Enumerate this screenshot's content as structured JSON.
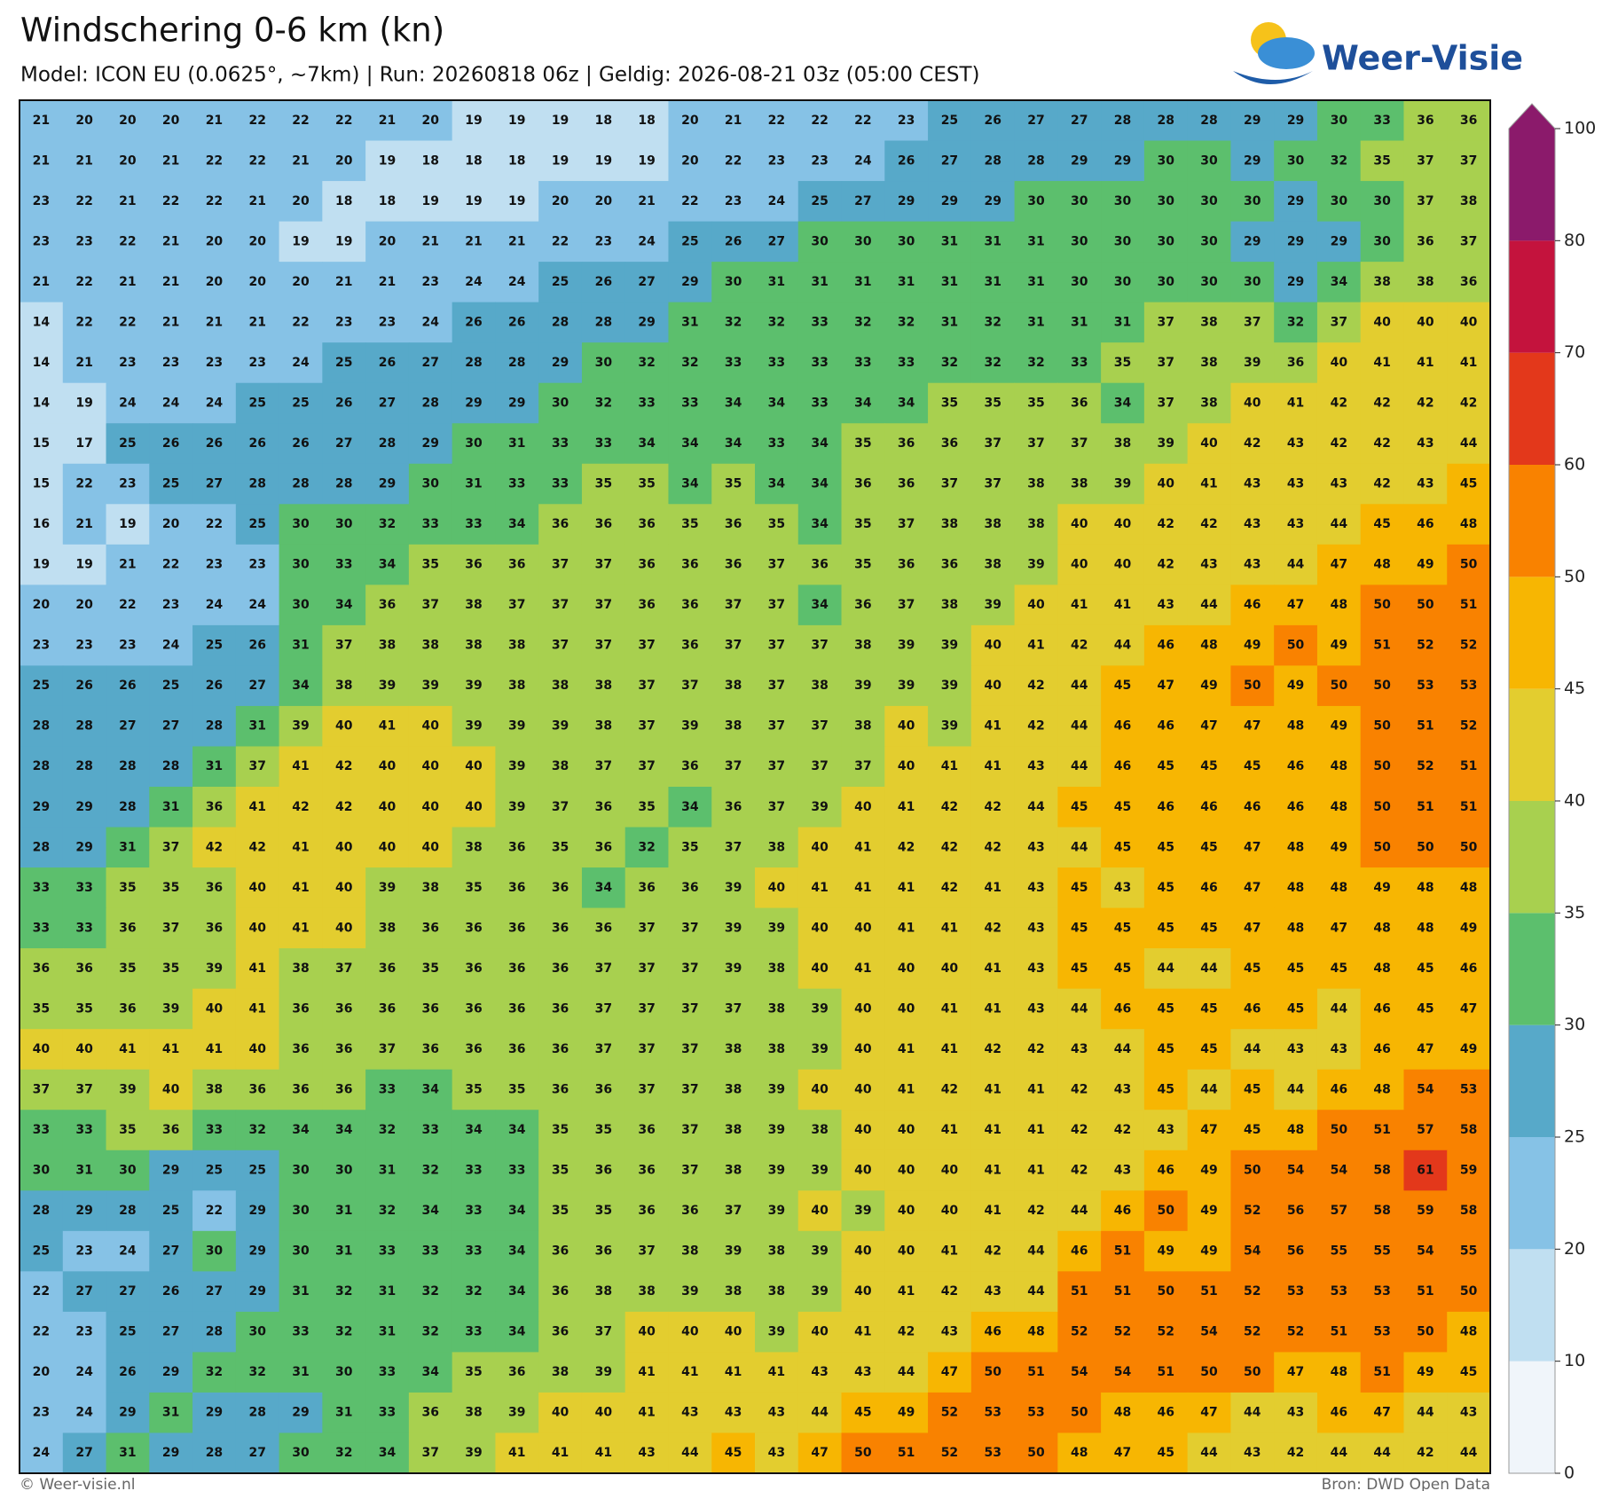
{
  "title": "Windschering 0-6 km (kn)",
  "subtitle": "Model: ICON EU (0.0625°, ~7km)  |  Run: 20260818 06z  |  Geldig: 2026-08-21 03z (05:00 CEST)",
  "logo": "Weer-Visie",
  "footer_left": "© Weer-visie.nl",
  "footer_right": "Bron: DWD Open Data",
  "colorbar": {
    "ticks": [
      0,
      10,
      20,
      25,
      30,
      35,
      40,
      45,
      50,
      60,
      70,
      80,
      100
    ],
    "colors": [
      "#f0f5fa",
      "#c0dff1",
      "#86c2e6",
      "#57a9c9",
      "#5cbf6d",
      "#a8d04f",
      "#e3cd2f",
      "#f7b602",
      "#f98200",
      "#e3381b",
      "#c4133d",
      "#8b1a6b"
    ]
  },
  "grid": {
    "values": [
      [
        21,
        20,
        20,
        20,
        21,
        22,
        22,
        22,
        21,
        20,
        19,
        19,
        19,
        18,
        18,
        20,
        21,
        22,
        22,
        22,
        23,
        25,
        26,
        27,
        27,
        28,
        28,
        28,
        29,
        29,
        30,
        33,
        36,
        36
      ],
      [
        21,
        21,
        20,
        21,
        22,
        22,
        21,
        20,
        19,
        18,
        18,
        18,
        19,
        19,
        19,
        20,
        22,
        23,
        23,
        24,
        26,
        27,
        28,
        28,
        29,
        29,
        30,
        30,
        29,
        30,
        32,
        35,
        37,
        37
      ],
      [
        23,
        22,
        21,
        22,
        22,
        21,
        20,
        18,
        18,
        19,
        19,
        19,
        20,
        20,
        21,
        22,
        23,
        24,
        25,
        27,
        29,
        29,
        29,
        30,
        30,
        30,
        30,
        30,
        30,
        29,
        30,
        30,
        37,
        38
      ],
      [
        23,
        23,
        22,
        21,
        20,
        20,
        19,
        19,
        20,
        21,
        21,
        21,
        22,
        23,
        24,
        25,
        26,
        27,
        30,
        30,
        30,
        31,
        31,
        31,
        30,
        30,
        30,
        30,
        29,
        29,
        29,
        30,
        36,
        37
      ],
      [
        21,
        22,
        21,
        21,
        20,
        20,
        20,
        21,
        21,
        23,
        24,
        24,
        25,
        26,
        27,
        29,
        30,
        31,
        31,
        31,
        31,
        31,
        31,
        31,
        30,
        30,
        30,
        30,
        30,
        29,
        34,
        38,
        38,
        36
      ],
      [
        14,
        22,
        22,
        21,
        21,
        21,
        22,
        23,
        23,
        24,
        26,
        26,
        28,
        28,
        29,
        31,
        32,
        32,
        33,
        32,
        32,
        31,
        32,
        31,
        31,
        31,
        37,
        38,
        37,
        32,
        37,
        40,
        40,
        40
      ],
      [
        14,
        21,
        23,
        23,
        23,
        23,
        24,
        25,
        26,
        27,
        28,
        28,
        29,
        30,
        32,
        32,
        33,
        33,
        33,
        33,
        33,
        32,
        32,
        32,
        33,
        35,
        37,
        38,
        39,
        36,
        40,
        41,
        41,
        41
      ],
      [
        14,
        19,
        24,
        24,
        24,
        25,
        25,
        26,
        27,
        28,
        29,
        29,
        30,
        32,
        33,
        33,
        34,
        34,
        33,
        34,
        34,
        35,
        35,
        35,
        36,
        34,
        37,
        38,
        40,
        41,
        42,
        42,
        42,
        42
      ],
      [
        15,
        17,
        25,
        26,
        26,
        26,
        26,
        27,
        28,
        29,
        30,
        31,
        33,
        33,
        34,
        34,
        34,
        33,
        34,
        35,
        36,
        36,
        37,
        37,
        37,
        38,
        39,
        40,
        42,
        43,
        42,
        42,
        43,
        44
      ],
      [
        15,
        22,
        23,
        25,
        27,
        28,
        28,
        28,
        29,
        30,
        31,
        33,
        33,
        35,
        35,
        34,
        35,
        34,
        34,
        36,
        36,
        37,
        37,
        38,
        38,
        39,
        40,
        41,
        43,
        43,
        43,
        42,
        43,
        45
      ],
      [
        16,
        21,
        19,
        20,
        22,
        25,
        30,
        30,
        32,
        33,
        33,
        34,
        36,
        36,
        36,
        35,
        36,
        35,
        34,
        35,
        37,
        38,
        38,
        38,
        40,
        40,
        42,
        42,
        43,
        43,
        44,
        45,
        46,
        48
      ],
      [
        19,
        19,
        21,
        22,
        23,
        23,
        30,
        33,
        34,
        35,
        36,
        36,
        37,
        37,
        36,
        36,
        36,
        37,
        36,
        35,
        36,
        36,
        38,
        39,
        40,
        40,
        42,
        43,
        43,
        44,
        47,
        48,
        49,
        50
      ],
      [
        20,
        20,
        22,
        23,
        24,
        24,
        30,
        34,
        36,
        37,
        38,
        37,
        37,
        37,
        36,
        36,
        37,
        37,
        34,
        36,
        37,
        38,
        39,
        40,
        41,
        41,
        43,
        44,
        46,
        47,
        48,
        50,
        50,
        51
      ],
      [
        23,
        23,
        23,
        24,
        25,
        26,
        31,
        37,
        38,
        38,
        38,
        38,
        37,
        37,
        37,
        36,
        37,
        37,
        37,
        38,
        39,
        39,
        40,
        41,
        42,
        44,
        46,
        48,
        49,
        50,
        49,
        51,
        52,
        52
      ],
      [
        25,
        26,
        26,
        25,
        26,
        27,
        34,
        38,
        39,
        39,
        39,
        38,
        38,
        38,
        37,
        37,
        38,
        37,
        38,
        39,
        39,
        39,
        40,
        42,
        44,
        45,
        47,
        49,
        50,
        49,
        50,
        50,
        53,
        53
      ],
      [
        28,
        28,
        27,
        27,
        28,
        31,
        39,
        40,
        41,
        40,
        39,
        39,
        39,
        38,
        37,
        39,
        38,
        37,
        37,
        38,
        40,
        39,
        41,
        42,
        44,
        46,
        46,
        47,
        47,
        48,
        49,
        50,
        51,
        52
      ],
      [
        28,
        28,
        28,
        28,
        31,
        37,
        41,
        42,
        40,
        40,
        40,
        39,
        38,
        37,
        37,
        36,
        37,
        37,
        37,
        37,
        40,
        41,
        41,
        43,
        44,
        46,
        45,
        45,
        45,
        46,
        48,
        50,
        52,
        51
      ],
      [
        29,
        29,
        28,
        31,
        36,
        41,
        42,
        42,
        40,
        40,
        40,
        39,
        37,
        36,
        35,
        34,
        36,
        37,
        39,
        40,
        41,
        42,
        42,
        44,
        45,
        45,
        46,
        46,
        46,
        46,
        48,
        50,
        51,
        51
      ],
      [
        28,
        29,
        31,
        37,
        42,
        42,
        41,
        40,
        40,
        40,
        38,
        36,
        35,
        36,
        32,
        35,
        37,
        38,
        40,
        41,
        42,
        42,
        42,
        43,
        44,
        45,
        45,
        45,
        47,
        48,
        49,
        50,
        50,
        50
      ],
      [
        33,
        33,
        35,
        35,
        36,
        40,
        41,
        40,
        39,
        38,
        35,
        36,
        36,
        34,
        36,
        36,
        39,
        40,
        41,
        41,
        41,
        42,
        41,
        43,
        45,
        43,
        45,
        46,
        47,
        48,
        48,
        49,
        48,
        48
      ],
      [
        33,
        33,
        36,
        37,
        36,
        40,
        41,
        40,
        38,
        36,
        36,
        36,
        36,
        36,
        37,
        37,
        39,
        39,
        40,
        40,
        41,
        41,
        42,
        43,
        45,
        45,
        45,
        45,
        47,
        48,
        47,
        48,
        48,
        49
      ],
      [
        36,
        36,
        35,
        35,
        39,
        41,
        38,
        37,
        36,
        35,
        36,
        36,
        36,
        37,
        37,
        37,
        39,
        38,
        40,
        41,
        40,
        40,
        41,
        43,
        45,
        45,
        44,
        44,
        45,
        45,
        45,
        48,
        45,
        46
      ],
      [
        35,
        35,
        36,
        39,
        40,
        41,
        36,
        36,
        36,
        36,
        36,
        36,
        36,
        37,
        37,
        37,
        37,
        38,
        39,
        40,
        40,
        41,
        41,
        43,
        44,
        46,
        45,
        45,
        46,
        45,
        44,
        46,
        45,
        47
      ],
      [
        40,
        40,
        41,
        41,
        41,
        40,
        36,
        36,
        37,
        36,
        36,
        36,
        36,
        37,
        37,
        37,
        38,
        38,
        39,
        40,
        41,
        41,
        42,
        42,
        43,
        44,
        45,
        45,
        44,
        43,
        43,
        46,
        47,
        49
      ],
      [
        37,
        37,
        39,
        40,
        38,
        36,
        36,
        36,
        33,
        34,
        35,
        35,
        36,
        36,
        37,
        37,
        38,
        39,
        40,
        40,
        41,
        42,
        41,
        41,
        42,
        43,
        45,
        44,
        45,
        44,
        46,
        48,
        54,
        53
      ],
      [
        33,
        33,
        35,
        36,
        33,
        32,
        34,
        34,
        32,
        33,
        34,
        34,
        35,
        35,
        36,
        37,
        38,
        39,
        38,
        40,
        40,
        41,
        41,
        41,
        42,
        42,
        43,
        47,
        45,
        48,
        50,
        51,
        57,
        58
      ],
      [
        30,
        31,
        30,
        29,
        25,
        25,
        30,
        30,
        31,
        32,
        33,
        33,
        35,
        36,
        36,
        37,
        38,
        39,
        39,
        40,
        40,
        40,
        41,
        41,
        42,
        43,
        46,
        49,
        50,
        54,
        54,
        58,
        61,
        59
      ],
      [
        28,
        29,
        28,
        25,
        22,
        29,
        30,
        31,
        32,
        34,
        33,
        34,
        35,
        35,
        36,
        36,
        37,
        39,
        40,
        39,
        40,
        40,
        41,
        42,
        44,
        46,
        50,
        49,
        52,
        56,
        57,
        58,
        59,
        58
      ],
      [
        25,
        23,
        24,
        27,
        30,
        29,
        30,
        31,
        33,
        33,
        33,
        34,
        36,
        36,
        37,
        38,
        39,
        38,
        39,
        40,
        40,
        41,
        42,
        44,
        46,
        51,
        49,
        49,
        54,
        56,
        55,
        55,
        54,
        55
      ],
      [
        22,
        27,
        27,
        26,
        27,
        29,
        31,
        32,
        31,
        32,
        32,
        34,
        36,
        38,
        38,
        39,
        38,
        38,
        39,
        40,
        41,
        42,
        43,
        44,
        51,
        51,
        50,
        51,
        52,
        53,
        53,
        53,
        51,
        50
      ],
      [
        22,
        23,
        25,
        27,
        28,
        30,
        33,
        32,
        31,
        32,
        33,
        34,
        36,
        37,
        40,
        40,
        40,
        39,
        40,
        41,
        42,
        43,
        46,
        48,
        52,
        52,
        52,
        54,
        52,
        52,
        51,
        53,
        50,
        48
      ],
      [
        20,
        24,
        26,
        29,
        32,
        32,
        31,
        30,
        33,
        34,
        35,
        36,
        38,
        39,
        41,
        41,
        41,
        41,
        43,
        43,
        44,
        47,
        50,
        51,
        54,
        54,
        51,
        50,
        50,
        47,
        48,
        51,
        49,
        45
      ],
      [
        23,
        24,
        29,
        31,
        29,
        28,
        29,
        31,
        33,
        36,
        38,
        39,
        40,
        40,
        41,
        43,
        43,
        43,
        44,
        45,
        49,
        52,
        53,
        53,
        50,
        48,
        46,
        47,
        44,
        43,
        46,
        47,
        44,
        43
      ],
      [
        24,
        27,
        31,
        29,
        28,
        27,
        30,
        32,
        34,
        37,
        39,
        41,
        41,
        41,
        43,
        44,
        45,
        43,
        47,
        50,
        51,
        52,
        53,
        50,
        48,
        47,
        45,
        44,
        43,
        42,
        44,
        44,
        42,
        44
      ]
    ]
  }
}
